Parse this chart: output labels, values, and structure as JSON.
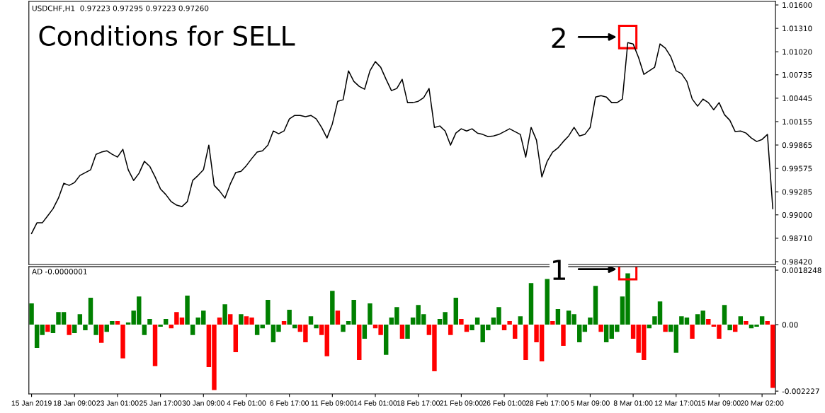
{
  "chart_data": [
    {
      "type": "line",
      "title": "Conditions for SELL",
      "subtitle": "USDCHF,H1  0.97223 0.97295 0.97223 0.97260",
      "annotations": [
        "2"
      ],
      "color": "#000000",
      "tick_labels": "y",
      "values": [
        0.98769,
        0.98901,
        0.98901,
        0.98988,
        0.99076,
        0.99207,
        0.99391,
        0.99365,
        0.994,
        0.99488,
        0.99523,
        0.99558,
        0.9975,
        0.99777,
        0.99794,
        0.9975,
        0.99715,
        0.99812,
        0.99558,
        0.99426,
        0.99514,
        0.99663,
        0.99601,
        0.9947,
        0.99321,
        0.99251,
        0.99163,
        0.9912,
        0.99102,
        0.99163,
        0.99426,
        0.99488,
        0.99558,
        0.99864,
        0.99365,
        0.99295,
        0.99207,
        0.99382,
        0.99523,
        0.9954,
        0.9961,
        0.99698,
        0.99777,
        0.99794,
        0.99864,
        1.00039,
        1.00004,
        1.00039,
        1.00188,
        1.00232,
        1.00232,
        1.00215,
        1.00232,
        1.00188,
        1.00083,
        0.99952,
        1.00127,
        1.00407,
        1.00425,
        1.00784,
        1.00653,
        1.00591,
        1.00556,
        1.00784,
        1.00898,
        1.00828,
        1.00679,
        1.00539,
        1.00565,
        1.00679,
        1.0039,
        1.0039,
        1.00407,
        1.00451,
        1.00565,
        1.00083,
        1.00101,
        1.00039,
        0.99864,
        1.00013,
        1.00066,
        1.00039,
        1.00066,
        1.00013,
        0.99996,
        0.99969,
        0.99978,
        0.99996,
        1.00031,
        1.00066,
        1.00031,
        0.99996,
        0.99715,
        1.00083,
        0.99926,
        0.9947,
        0.99663,
        0.99777,
        0.99829,
        0.99908,
        0.99978,
        1.00083,
        0.99978,
        0.99996,
        1.00083,
        1.0046,
        1.00477,
        1.0046,
        1.0039,
        1.0039,
        1.00434,
        1.01134,
        1.01117,
        1.0095,
        1.0074,
        1.00784,
        1.00828,
        1.01117,
        1.01064,
        1.00959,
        1.00784,
        1.00749,
        1.00653,
        1.00434,
        1.00346,
        1.00434,
        1.0039,
        1.00302,
        1.0039,
        1.00241,
        1.00171,
        1.00031,
        1.00039,
        1.00013,
        0.99952,
        0.99908,
        0.99934,
        0.99996,
        0.99076
      ],
      "ylim": [
        0.98385,
        1.01644
      ],
      "yticks": [
        {
          "value": 1.016,
          "label": "1.01600"
        },
        {
          "value": 1.0131,
          "label": "1.01310"
        },
        {
          "value": 1.0102,
          "label": "1.01020"
        },
        {
          "value": 1.00735,
          "label": "1.00735"
        },
        {
          "value": 1.00445,
          "label": "1.00445"
        },
        {
          "value": 1.00155,
          "label": "1.00155"
        },
        {
          "value": 0.99865,
          "label": "0.99865"
        },
        {
          "value": 0.99575,
          "label": "0.99575"
        },
        {
          "value": 0.99285,
          "label": "0.99285"
        },
        {
          "value": 0.99,
          "label": "0.99000"
        },
        {
          "value": 0.9871,
          "label": "0.98710"
        },
        {
          "value": 0.9842,
          "label": "0.98420"
        }
      ]
    },
    {
      "type": "bar",
      "subtitle": "AD -0.0000001",
      "annotations": [
        "1"
      ],
      "categories": [
        "15 Jan 2019",
        null,
        null,
        null,
        null,
        null,
        null,
        null,
        "18 Jan 09:00",
        null,
        null,
        null,
        null,
        null,
        null,
        null,
        "23 Jan 01:00",
        null,
        null,
        null,
        null,
        null,
        null,
        null,
        "25 Jan 17:00",
        null,
        null,
        null,
        null,
        null,
        null,
        null,
        "30 Jan 09:00",
        null,
        null,
        null,
        null,
        null,
        null,
        null,
        "4 Feb 01:00",
        null,
        null,
        null,
        null,
        null,
        null,
        null,
        "6 Feb 17:00",
        null,
        null,
        null,
        null,
        null,
        null,
        null,
        "11 Feb 09:00",
        null,
        null,
        null,
        null,
        null,
        null,
        null,
        "14 Feb 01:00",
        null,
        null,
        null,
        null,
        null,
        null,
        null,
        "18 Feb 17:00",
        null,
        null,
        null,
        null,
        null,
        null,
        null,
        "21 Feb 09:00",
        null,
        null,
        null,
        null,
        null,
        null,
        null,
        "26 Feb 01:00",
        null,
        null,
        null,
        null,
        null,
        null,
        null,
        "28 Feb 17:00",
        null,
        null,
        null,
        null,
        null,
        null,
        null,
        "5 Mar 09:00",
        null,
        null,
        null,
        null,
        null,
        null,
        null,
        "8 Mar 01:00",
        null,
        null,
        null,
        null,
        null,
        null,
        null,
        "12 Mar 17:00",
        null,
        null,
        null,
        null,
        null,
        null,
        null,
        "15 Mar 09:00",
        null,
        null,
        null,
        null,
        null,
        null,
        null,
        "20 Mar 02:00",
        null,
        null
      ],
      "values": [
        0.00071,
        -0.00078,
        -0.00035,
        -0.00024,
        -0.00028,
        0.00042,
        0.00042,
        -0.00035,
        -0.00028,
        0.00035,
        -0.00019,
        0.0009,
        -0.00035,
        -0.00061,
        -0.00024,
        0.00012,
        0.00012,
        -0.00113,
        7e-05,
        0.00047,
        0.00094,
        -0.00035,
        0.00019,
        -0.00139,
        -7e-05,
        0.00019,
        -0.00012,
        0.00042,
        0.00024,
        0.00097,
        -0.00035,
        0.00024,
        0.00047,
        -0.00142,
        -0.00219,
        0.00024,
        0.00068,
        0.00035,
        -0.00092,
        0.00035,
        0.00028,
        0.00024,
        -0.00035,
        -0.00012,
        0.00083,
        -0.00059,
        -0.00024,
        0.00012,
        0.0005,
        -0.00012,
        -0.00024,
        -0.00059,
        0.00028,
        -0.00012,
        -0.00035,
        -0.00106,
        0.00113,
        0.00047,
        -0.00024,
        0.00012,
        0.00083,
        -0.00118,
        -0.00047,
        0.00071,
        -0.00012,
        -0.00035,
        -0.00101,
        0.00024,
        0.00059,
        -0.00047,
        -0.00047,
        0.00024,
        0.00066,
        0.00035,
        -0.00035,
        -0.00156,
        0.00019,
        0.00042,
        -0.00035,
        0.0009,
        0.00019,
        -0.00024,
        -0.00019,
        0.00024,
        -0.00059,
        -0.00019,
        0.00024,
        0.00059,
        -0.00019,
        0.00012,
        -0.00047,
        0.00028,
        -0.00118,
        0.00139,
        -0.00059,
        -0.00123,
        0.00153,
        0.00012,
        0.00052,
        -0.00071,
        0.00047,
        0.00035,
        -0.00059,
        -0.00024,
        0.00024,
        0.0013,
        -0.00024,
        -0.00059,
        -0.00047,
        -0.00024,
        0.00094,
        0.00172,
        -0.00047,
        -0.00094,
        -0.00118,
        -0.00012,
        0.00028,
        0.00078,
        -0.00024,
        -0.00024,
        -0.00094,
        0.00028,
        0.00024,
        -0.00047,
        0.00035,
        0.00047,
        0.00019,
        -7e-05,
        -0.00047,
        0.00066,
        -0.00019,
        -0.00024,
        0.00028,
        0.00012,
        -0.00012,
        -7e-05,
        0.00028,
        0.00012,
        -0.00212
      ],
      "colors": [
        "#008000",
        "#008000",
        "#008000",
        "#ff0000",
        "#008000",
        "#008000",
        "#008000",
        "#ff0000",
        "#008000",
        "#008000",
        "#008000",
        "#008000",
        "#008000",
        "#ff0000",
        "#008000",
        "#008000",
        "#ff0000",
        "#ff0000",
        "#008000",
        "#008000",
        "#008000",
        "#008000",
        "#008000",
        "#ff0000",
        "#008000",
        "#008000",
        "#ff0000",
        "#ff0000",
        "#ff0000",
        "#008000",
        "#008000",
        "#008000",
        "#008000",
        "#ff0000",
        "#ff0000",
        "#ff0000",
        "#008000",
        "#ff0000",
        "#ff0000",
        "#008000",
        "#ff0000",
        "#ff0000",
        "#008000",
        "#008000",
        "#008000",
        "#008000",
        "#008000",
        "#ff0000",
        "#008000",
        "#008000",
        "#ff0000",
        "#ff0000",
        "#008000",
        "#008000",
        "#ff0000",
        "#ff0000",
        "#008000",
        "#ff0000",
        "#008000",
        "#008000",
        "#008000",
        "#ff0000",
        "#008000",
        "#008000",
        "#ff0000",
        "#ff0000",
        "#008000",
        "#008000",
        "#008000",
        "#ff0000",
        "#008000",
        "#008000",
        "#008000",
        "#008000",
        "#ff0000",
        "#ff0000",
        "#008000",
        "#008000",
        "#ff0000",
        "#008000",
        "#ff0000",
        "#ff0000",
        "#008000",
        "#008000",
        "#008000",
        "#008000",
        "#008000",
        "#008000",
        "#ff0000",
        "#ff0000",
        "#ff0000",
        "#008000",
        "#ff0000",
        "#008000",
        "#ff0000",
        "#ff0000",
        "#008000",
        "#ff0000",
        "#008000",
        "#ff0000",
        "#008000",
        "#008000",
        "#008000",
        "#008000",
        "#008000",
        "#008000",
        "#ff0000",
        "#008000",
        "#008000",
        "#008000",
        "#008000",
        "#008000",
        "#ff0000",
        "#ff0000",
        "#ff0000",
        "#008000",
        "#008000",
        "#008000",
        "#ff0000",
        "#008000",
        "#008000",
        "#008000",
        "#008000",
        "#ff0000",
        "#008000",
        "#008000",
        "#ff0000",
        "#ff0000",
        "#ff0000",
        "#008000",
        "#008000",
        "#ff0000",
        "#008000",
        "#ff0000",
        "#008000",
        "#008000",
        "#008000",
        "#ff0000",
        "#ff0000"
      ],
      "ylim": [
        -0.00232,
        0.00194
      ],
      "yticks": [
        0.0018248,
        {
          "value": 0,
          "label": "0.00"
        },
        -0.002227
      ]
    }
  ]
}
